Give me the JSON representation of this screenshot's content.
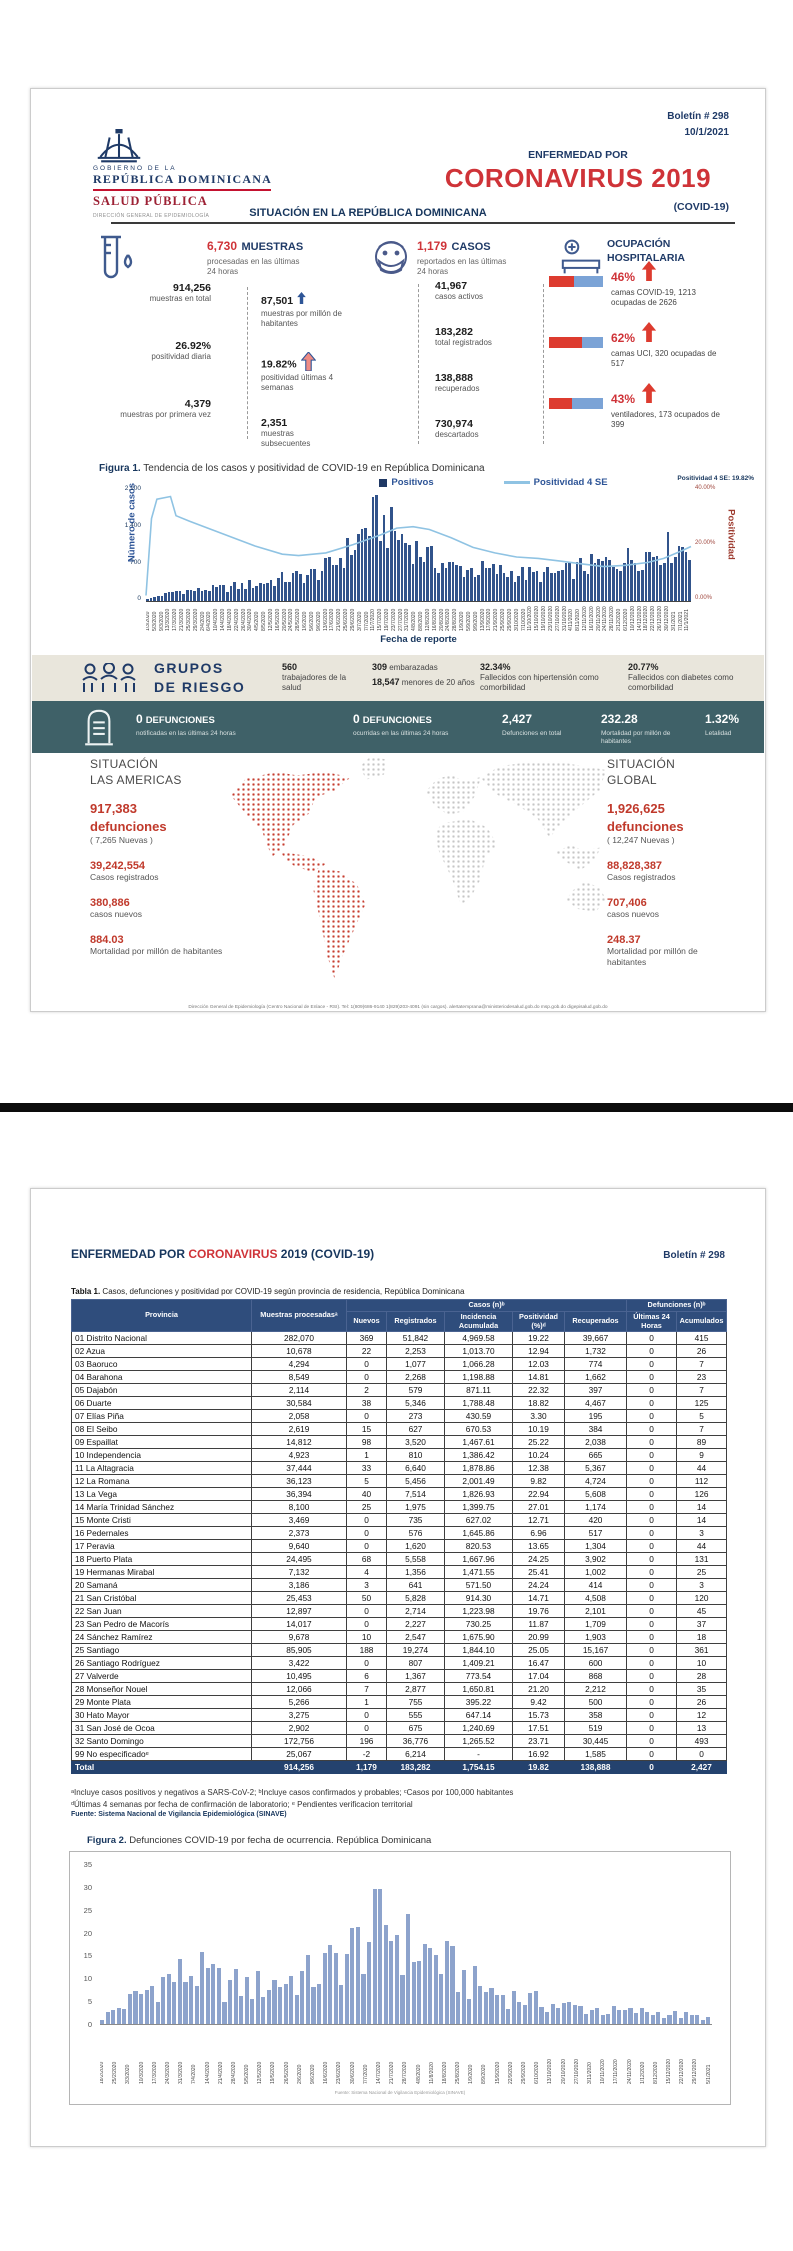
{
  "p1": {
    "boletin": "Boletín # 298",
    "fecha": "10/1/2021",
    "logo": {
      "gov_small": "GOBIERNO DE LA",
      "gov_big": "REPÚBLICA DOMINICANA",
      "salud": "SALUD PÚBLICA",
      "direccion": "DIRECCIÓN GENERAL DE EPIDEMIOLOGÍA"
    },
    "enfermedad": "ENFERMEDAD POR",
    "titulo": "CORONAVIRUS 2019",
    "covid": "(COVID-19)",
    "seccion": "SITUACIÓN EN LA REPÚBLICA DOMINICANA",
    "muestras": {
      "v": "6,730",
      "l": "MUESTRAS",
      "sub": "procesadas en las últimas 24 horas",
      "left": [
        {
          "v": "914,256",
          "l": "muestras en total"
        },
        {
          "v": "26.92%",
          "l": "positividad diaria"
        },
        {
          "v": "4,379",
          "l": "muestras por primera vez"
        }
      ],
      "right": [
        {
          "v": "87,501",
          "l": "muestras por millón de habitantes"
        },
        {
          "v": "19.82%",
          "l": "positividad últimas 4 semanas"
        },
        {
          "v": "2,351",
          "l": "muestras subsecuentes"
        }
      ]
    },
    "casos": {
      "v": "1,179",
      "l": "CASOS",
      "sub": "reportados en las últimas 24 horas",
      "items": [
        {
          "v": "41,967",
          "l": "casos activos"
        },
        {
          "v": "183,282",
          "l": "total registrados"
        },
        {
          "v": "138,888",
          "l": "recuperados"
        },
        {
          "v": "730,974",
          "l": "descartados"
        }
      ]
    },
    "ocupacion": {
      "t1": "OCUPACIÓN",
      "t2": "HOSPITALARIA",
      "items": [
        {
          "pct": "46%",
          "desc": "camas COVID-19, 1213 ocupadas de 2626",
          "fill": 46
        },
        {
          "pct": "62%",
          "desc": "camas UCI, 320 ocupadas de 517",
          "fill": 62
        },
        {
          "pct": "43%",
          "desc": "ventiladores, 173 ocupados de 399",
          "fill": 43
        }
      ]
    },
    "fig1": {
      "type": "bar+line",
      "cap_b": "Figura 1.",
      "cap": " Tendencia de los casos y positividad de COVID-19 en República Dominicana",
      "leg_bar": "Positivos",
      "leg_line": "Positividad 4 SE",
      "ylab": "Número de casos",
      "ylab_r": "Positividad",
      "xlab": "Fecha de reporte",
      "yticks": [
        "2,100",
        "1,400",
        "700",
        "0"
      ],
      "yticks_r": [
        "40.00%",
        "20.00%",
        "0.00%"
      ],
      "anno": "Positividad 4 SE: 19.82%",
      "ymax": 2100,
      "envelope": [
        [
          0,
          50
        ],
        [
          0.05,
          240
        ],
        [
          0.1,
          280
        ],
        [
          0.15,
          350
        ],
        [
          0.2,
          430
        ],
        [
          0.25,
          560
        ],
        [
          0.3,
          660
        ],
        [
          0.34,
          900
        ],
        [
          0.38,
          1400
        ],
        [
          0.4,
          1800
        ],
        [
          0.42,
          2100
        ],
        [
          0.44,
          1900
        ],
        [
          0.46,
          1700
        ],
        [
          0.48,
          1500
        ],
        [
          0.5,
          1300
        ],
        [
          0.53,
          1000
        ],
        [
          0.56,
          860
        ],
        [
          0.6,
          800
        ],
        [
          0.64,
          760
        ],
        [
          0.68,
          700
        ],
        [
          0.72,
          660
        ],
        [
          0.76,
          700
        ],
        [
          0.8,
          860
        ],
        [
          0.84,
          950
        ],
        [
          0.88,
          1060
        ],
        [
          0.92,
          1200
        ],
        [
          0.96,
          1350
        ],
        [
          1,
          1420
        ]
      ],
      "line": [
        [
          0,
          2
        ],
        [
          0.01,
          30
        ],
        [
          0.02,
          37
        ],
        [
          0.045,
          38
        ],
        [
          0.055,
          31
        ],
        [
          0.08,
          29
        ],
        [
          0.12,
          26
        ],
        [
          0.16,
          23
        ],
        [
          0.2,
          20
        ],
        [
          0.25,
          17
        ],
        [
          0.28,
          16.5
        ],
        [
          0.33,
          17.5
        ],
        [
          0.38,
          20.5
        ],
        [
          0.43,
          24
        ],
        [
          0.46,
          26.5
        ],
        [
          0.49,
          27
        ],
        [
          0.52,
          26
        ],
        [
          0.56,
          23
        ],
        [
          0.6,
          19.5
        ],
        [
          0.64,
          17.5
        ],
        [
          0.68,
          16
        ],
        [
          0.72,
          15.5
        ],
        [
          0.76,
          14.5
        ],
        [
          0.8,
          13.5
        ],
        [
          0.84,
          12.5
        ],
        [
          0.88,
          13
        ],
        [
          0.92,
          14
        ],
        [
          0.95,
          15.5
        ],
        [
          0.98,
          18
        ],
        [
          1,
          19.8
        ]
      ],
      "n_bars": 150,
      "x_start": "1/3/2020",
      "x_step_days": 4,
      "x_count": 80
    },
    "riesgo": {
      "t1": "GRUPOS",
      "t2": "DE RIESGO",
      "c1": {
        "v": "560",
        "l": "trabajadores de la salud"
      },
      "c2a": {
        "v": "309",
        "l": "embarazadas"
      },
      "c2b": {
        "v": "18,547",
        "l": "menores de 20 años"
      },
      "c3": {
        "v": "32.34%",
        "l": "Fallecidos con hipertensión como comorbilidad"
      },
      "c4": {
        "v": "20.77%",
        "l": "Fallecidos con diabetes como comorbilidad"
      }
    },
    "defunciones": {
      "i1": {
        "v": "0",
        "s": "DEFUNCIONES",
        "l": "notificadas en las últimas 24 horas"
      },
      "i2": {
        "v": "0",
        "s": "DEFUNCIONES",
        "l": "ocurridas en las últimas 24 horas"
      },
      "i3": {
        "v": "2,427",
        "l": "Defunciones en total"
      },
      "i4": {
        "v": "232.28",
        "l": "Mortalidad por millón de habitantes"
      },
      "i5": {
        "v": "1.32%",
        "l": "Letalidad"
      }
    },
    "americas": {
      "t1": "SITUACIÓN",
      "t2": "LAS AMERICAS",
      "d_v": "917,383",
      "d_l": "defunciones",
      "d_n": "( 7,265 Nuevas )",
      "c_v": "39,242,554",
      "c_l": "Casos registrados",
      "n_v": "380,886",
      "n_l": "casos nuevos",
      "m_v": "884.03",
      "m_l": "Mortalidad por millón de habitantes"
    },
    "global": {
      "t1": "SITUACIÓN",
      "t2": "GLOBAL",
      "d_v": "1,926,625",
      "d_l": "defunciones",
      "d_n": "( 12,247 Nuevas )",
      "c_v": "88,828,387",
      "c_l": "Casos registrados",
      "n_v": "707,406",
      "n_l": "casos nuevos",
      "m_v": "248.37",
      "m_l": "Mortalidad por millón de habitantes"
    },
    "footer": "Dirección General de Epidemiología (Centro Nacional de Enlace - RSI). Tel: 1(809)686-9140  1(829)203-4091 (sin cargos). alertatemprana@ministeriodesalud.gob.do    msp.gob.do    digepisalud.gob.do"
  },
  "p2": {
    "hdr_a": "ENFERMEDAD POR ",
    "hdr_red": "CORONAVIRUS",
    "hdr_b": " 2019 (COVID-19)",
    "boletin": "Boletín # 298",
    "tcap_b": "Tabla 1.",
    "tcap": " Casos, defunciones y positividad por COVID-19 según provincia de residencia, República Dominicana",
    "cols": {
      "prov": "Provincia",
      "muestras": "Muestras procesadasᵃ",
      "casos": "Casos (n)ᵇ",
      "defun": "Defunciones (n)ᵇ",
      "sub": [
        "Nuevos",
        "Registrados",
        "Incidencia Acumulada",
        "Positividad (%)ᵈ",
        "Recuperados",
        "Últimas 24 Horas",
        "Acumulados"
      ]
    },
    "rows": [
      [
        "01 Distrito Nacional",
        "282,070",
        "369",
        "51,842",
        "4,969.58",
        "19.22",
        "39,667",
        "0",
        "415"
      ],
      [
        "02 Azua",
        "10,678",
        "22",
        "2,253",
        "1,013.70",
        "12.94",
        "1,732",
        "0",
        "26"
      ],
      [
        "03 Baoruco",
        "4,294",
        "0",
        "1,077",
        "1,066.28",
        "12.03",
        "774",
        "0",
        "7"
      ],
      [
        "04 Barahona",
        "8,549",
        "0",
        "2,268",
        "1,198.88",
        "14.81",
        "1,662",
        "0",
        "23"
      ],
      [
        "05 Dajabón",
        "2,114",
        "2",
        "579",
        "871.11",
        "22.32",
        "397",
        "0",
        "7"
      ],
      [
        "06 Duarte",
        "30,584",
        "38",
        "5,346",
        "1,788.48",
        "18.82",
        "4,467",
        "0",
        "125"
      ],
      [
        "07 Elías Piña",
        "2,058",
        "0",
        "273",
        "430.59",
        "3.30",
        "195",
        "0",
        "5"
      ],
      [
        "08 El Seibo",
        "2,619",
        "15",
        "627",
        "670.53",
        "10.19",
        "384",
        "0",
        "7"
      ],
      [
        "09 Espaillat",
        "14,812",
        "98",
        "3,520",
        "1,467.61",
        "25.22",
        "2,038",
        "0",
        "89"
      ],
      [
        "10 Independencia",
        "4,923",
        "1",
        "810",
        "1,386.42",
        "10.24",
        "665",
        "0",
        "9"
      ],
      [
        "11 La Altagracia",
        "37,444",
        "33",
        "6,640",
        "1,878.86",
        "12.38",
        "5,367",
        "0",
        "44"
      ],
      [
        "12 La Romana",
        "36,123",
        "5",
        "5,456",
        "2,001.49",
        "9.82",
        "4,724",
        "0",
        "112"
      ],
      [
        "13 La Vega",
        "36,394",
        "40",
        "7,514",
        "1,826.93",
        "22.94",
        "5,608",
        "0",
        "126"
      ],
      [
        "14 María Trinidad Sánchez",
        "8,100",
        "25",
        "1,975",
        "1,399.75",
        "27.01",
        "1,174",
        "0",
        "14"
      ],
      [
        "15 Monte Cristi",
        "3,469",
        "0",
        "735",
        "627.02",
        "12.71",
        "420",
        "0",
        "14"
      ],
      [
        "16 Pedernales",
        "2,373",
        "0",
        "576",
        "1,645.86",
        "6.96",
        "517",
        "0",
        "3"
      ],
      [
        "17 Peravia",
        "9,640",
        "0",
        "1,620",
        "820.53",
        "13.65",
        "1,304",
        "0",
        "44"
      ],
      [
        "18 Puerto Plata",
        "24,495",
        "68",
        "5,558",
        "1,667.96",
        "24.25",
        "3,902",
        "0",
        "131"
      ],
      [
        "19 Hermanas Mirabal",
        "7,132",
        "4",
        "1,356",
        "1,471.55",
        "25.41",
        "1,002",
        "0",
        "25"
      ],
      [
        "20 Samaná",
        "3,186",
        "3",
        "641",
        "571.50",
        "24.24",
        "414",
        "0",
        "3"
      ],
      [
        "21 San Cristóbal",
        "25,453",
        "50",
        "5,828",
        "914.30",
        "14.71",
        "4,508",
        "0",
        "120"
      ],
      [
        "22 San Juan",
        "12,897",
        "0",
        "2,714",
        "1,223.98",
        "19.76",
        "2,101",
        "0",
        "45"
      ],
      [
        "23 San Pedro de Macorís",
        "14,017",
        "0",
        "2,227",
        "730.25",
        "11.87",
        "1,709",
        "0",
        "37"
      ],
      [
        "24 Sánchez Ramírez",
        "9,678",
        "10",
        "2,547",
        "1,675.90",
        "20.99",
        "1,903",
        "0",
        "18"
      ],
      [
        "25 Santiago",
        "85,905",
        "188",
        "19,274",
        "1,844.10",
        "25.05",
        "15,167",
        "0",
        "361"
      ],
      [
        "26 Santiago Rodríguez",
        "3,422",
        "0",
        "807",
        "1,409.21",
        "16.47",
        "600",
        "0",
        "10"
      ],
      [
        "27 Valverde",
        "10,495",
        "6",
        "1,367",
        "773.54",
        "17.04",
        "868",
        "0",
        "28"
      ],
      [
        "28 Monseñor Nouel",
        "12,066",
        "7",
        "2,877",
        "1,650.81",
        "21.20",
        "2,212",
        "0",
        "35"
      ],
      [
        "29 Monte Plata",
        "5,266",
        "1",
        "755",
        "395.22",
        "9.42",
        "500",
        "0",
        "26"
      ],
      [
        "30 Hato Mayor",
        "3,275",
        "0",
        "555",
        "647.14",
        "15.73",
        "358",
        "0",
        "12"
      ],
      [
        "31 San José de Ocoa",
        "2,902",
        "0",
        "675",
        "1,240.69",
        "17.51",
        "519",
        "0",
        "13"
      ],
      [
        "32 Santo Domingo",
        "172,756",
        "196",
        "36,776",
        "1,265.52",
        "23.71",
        "30,445",
        "0",
        "493"
      ],
      [
        "99 No especificadoᵉ",
        "25,067",
        "-2",
        "6,214",
        "-",
        "16.92",
        "1,585",
        "0",
        "0"
      ]
    ],
    "total": [
      "Total",
      "914,256",
      "1,179",
      "183,282",
      "1,754.15",
      "19.82",
      "138,888",
      "0",
      "2,427"
    ],
    "notes": [
      "ᵃIncluye casos positivos y negativos a SARS-CoV-2; ᵇIncluye casos confirmados y probables; ᶜCasos por 100,000 habitantes",
      "ᵈÚltimas 4 semanas por fecha de confirmación de laboratorio; ᵉ Pendientes verificacion territorial",
      "Fuente: Sistema Nacional de Vigilancia Epidemiológica (SINAVE)"
    ],
    "fig2": {
      "type": "bar",
      "cap_b": "Figura 2.",
      "cap": " Defunciones COVID-19 por fecha de ocurrencia. República Dominicana",
      "yticks": [
        "35",
        "30",
        "25",
        "20",
        "15",
        "10",
        "5",
        "0"
      ],
      "ymax": 35,
      "envelope": [
        [
          0,
          2
        ],
        [
          0.05,
          8
        ],
        [
          0.1,
          14
        ],
        [
          0.15,
          17
        ],
        [
          0.2,
          13
        ],
        [
          0.25,
          12
        ],
        [
          0.3,
          14
        ],
        [
          0.35,
          16
        ],
        [
          0.4,
          22
        ],
        [
          0.45,
          30
        ],
        [
          0.47,
          33
        ],
        [
          0.5,
          26
        ],
        [
          0.55,
          22
        ],
        [
          0.6,
          14
        ],
        [
          0.65,
          10
        ],
        [
          0.7,
          8
        ],
        [
          0.75,
          6
        ],
        [
          0.8,
          5
        ],
        [
          0.85,
          4
        ],
        [
          0.9,
          4
        ],
        [
          0.95,
          3
        ],
        [
          1,
          2
        ]
      ],
      "n_bars": 110,
      "x_start": "18/2/2020",
      "x_step_days": 7,
      "x_count": 47,
      "src": "Fuente: Sistema Nacional de Vigilancia Epidemiológica (SINAVE)"
    }
  }
}
